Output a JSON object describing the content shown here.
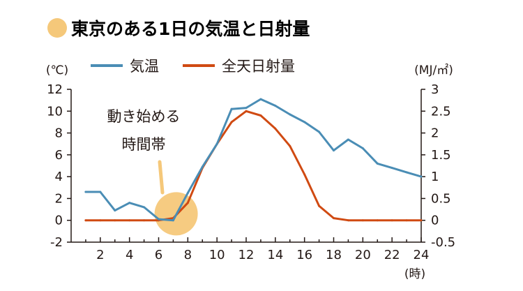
{
  "title": "東京のある1日の気温と日射量",
  "colors": {
    "temperature": "#4a8db5",
    "radiation": "#d04a12",
    "highlight": "#f5c87a",
    "axis": "#231815"
  },
  "chart_data": {
    "type": "line",
    "title": "東京のある1日の気温と日射量",
    "x_unit": "(時)",
    "x_ticks": [
      2,
      4,
      6,
      8,
      10,
      12,
      14,
      16,
      18,
      20,
      22,
      24
    ],
    "xlim": [
      0,
      24
    ],
    "y_left": {
      "unit": "(℃)",
      "ticks": [
        12,
        10,
        8,
        6,
        4,
        2,
        0,
        -2
      ],
      "lim": [
        -2,
        12
      ]
    },
    "y_right": {
      "unit": "(MJ/㎡)",
      "ticks": [
        "3",
        "2.5",
        "2",
        "1.5",
        "1",
        "0.5",
        "0",
        "-0.5"
      ],
      "lim": [
        -0.5,
        3
      ]
    },
    "legend": {
      "placement": "top",
      "entries": [
        "気温",
        "全天日射量"
      ]
    },
    "annotation": {
      "line1": "動き始める",
      "line2": "時間帯",
      "x": 7.2,
      "y": 0.6
    },
    "series": [
      {
        "name": "気温",
        "axis": "left",
        "x": [
          1,
          2,
          3,
          4,
          5,
          6,
          7,
          8,
          9,
          10,
          11,
          12,
          13,
          14,
          15,
          16,
          17,
          18,
          19,
          20,
          21,
          22,
          23,
          24
        ],
        "values": [
          2.6,
          2.6,
          0.9,
          1.6,
          1.2,
          0.1,
          0.0,
          2.5,
          4.9,
          7.0,
          10.2,
          10.3,
          11.1,
          10.5,
          9.7,
          9.0,
          8.1,
          6.4,
          7.4,
          6.6,
          5.2,
          4.8,
          4.4,
          4.0
        ],
        "color": "#4a8db5"
      },
      {
        "name": "全天日射量",
        "axis": "right",
        "x": [
          1,
          2,
          3,
          4,
          5,
          6,
          7,
          8,
          9,
          10,
          11,
          12,
          13,
          14,
          15,
          16,
          17,
          18,
          19,
          20,
          21,
          22,
          23,
          24
        ],
        "values": [
          0,
          0,
          0,
          0,
          0,
          0,
          0.05,
          0.4,
          1.2,
          1.75,
          2.25,
          2.5,
          2.4,
          2.1,
          1.7,
          1.05,
          0.33,
          0.05,
          0,
          0,
          0,
          0,
          0,
          0
        ],
        "color": "#d04a12"
      }
    ]
  }
}
